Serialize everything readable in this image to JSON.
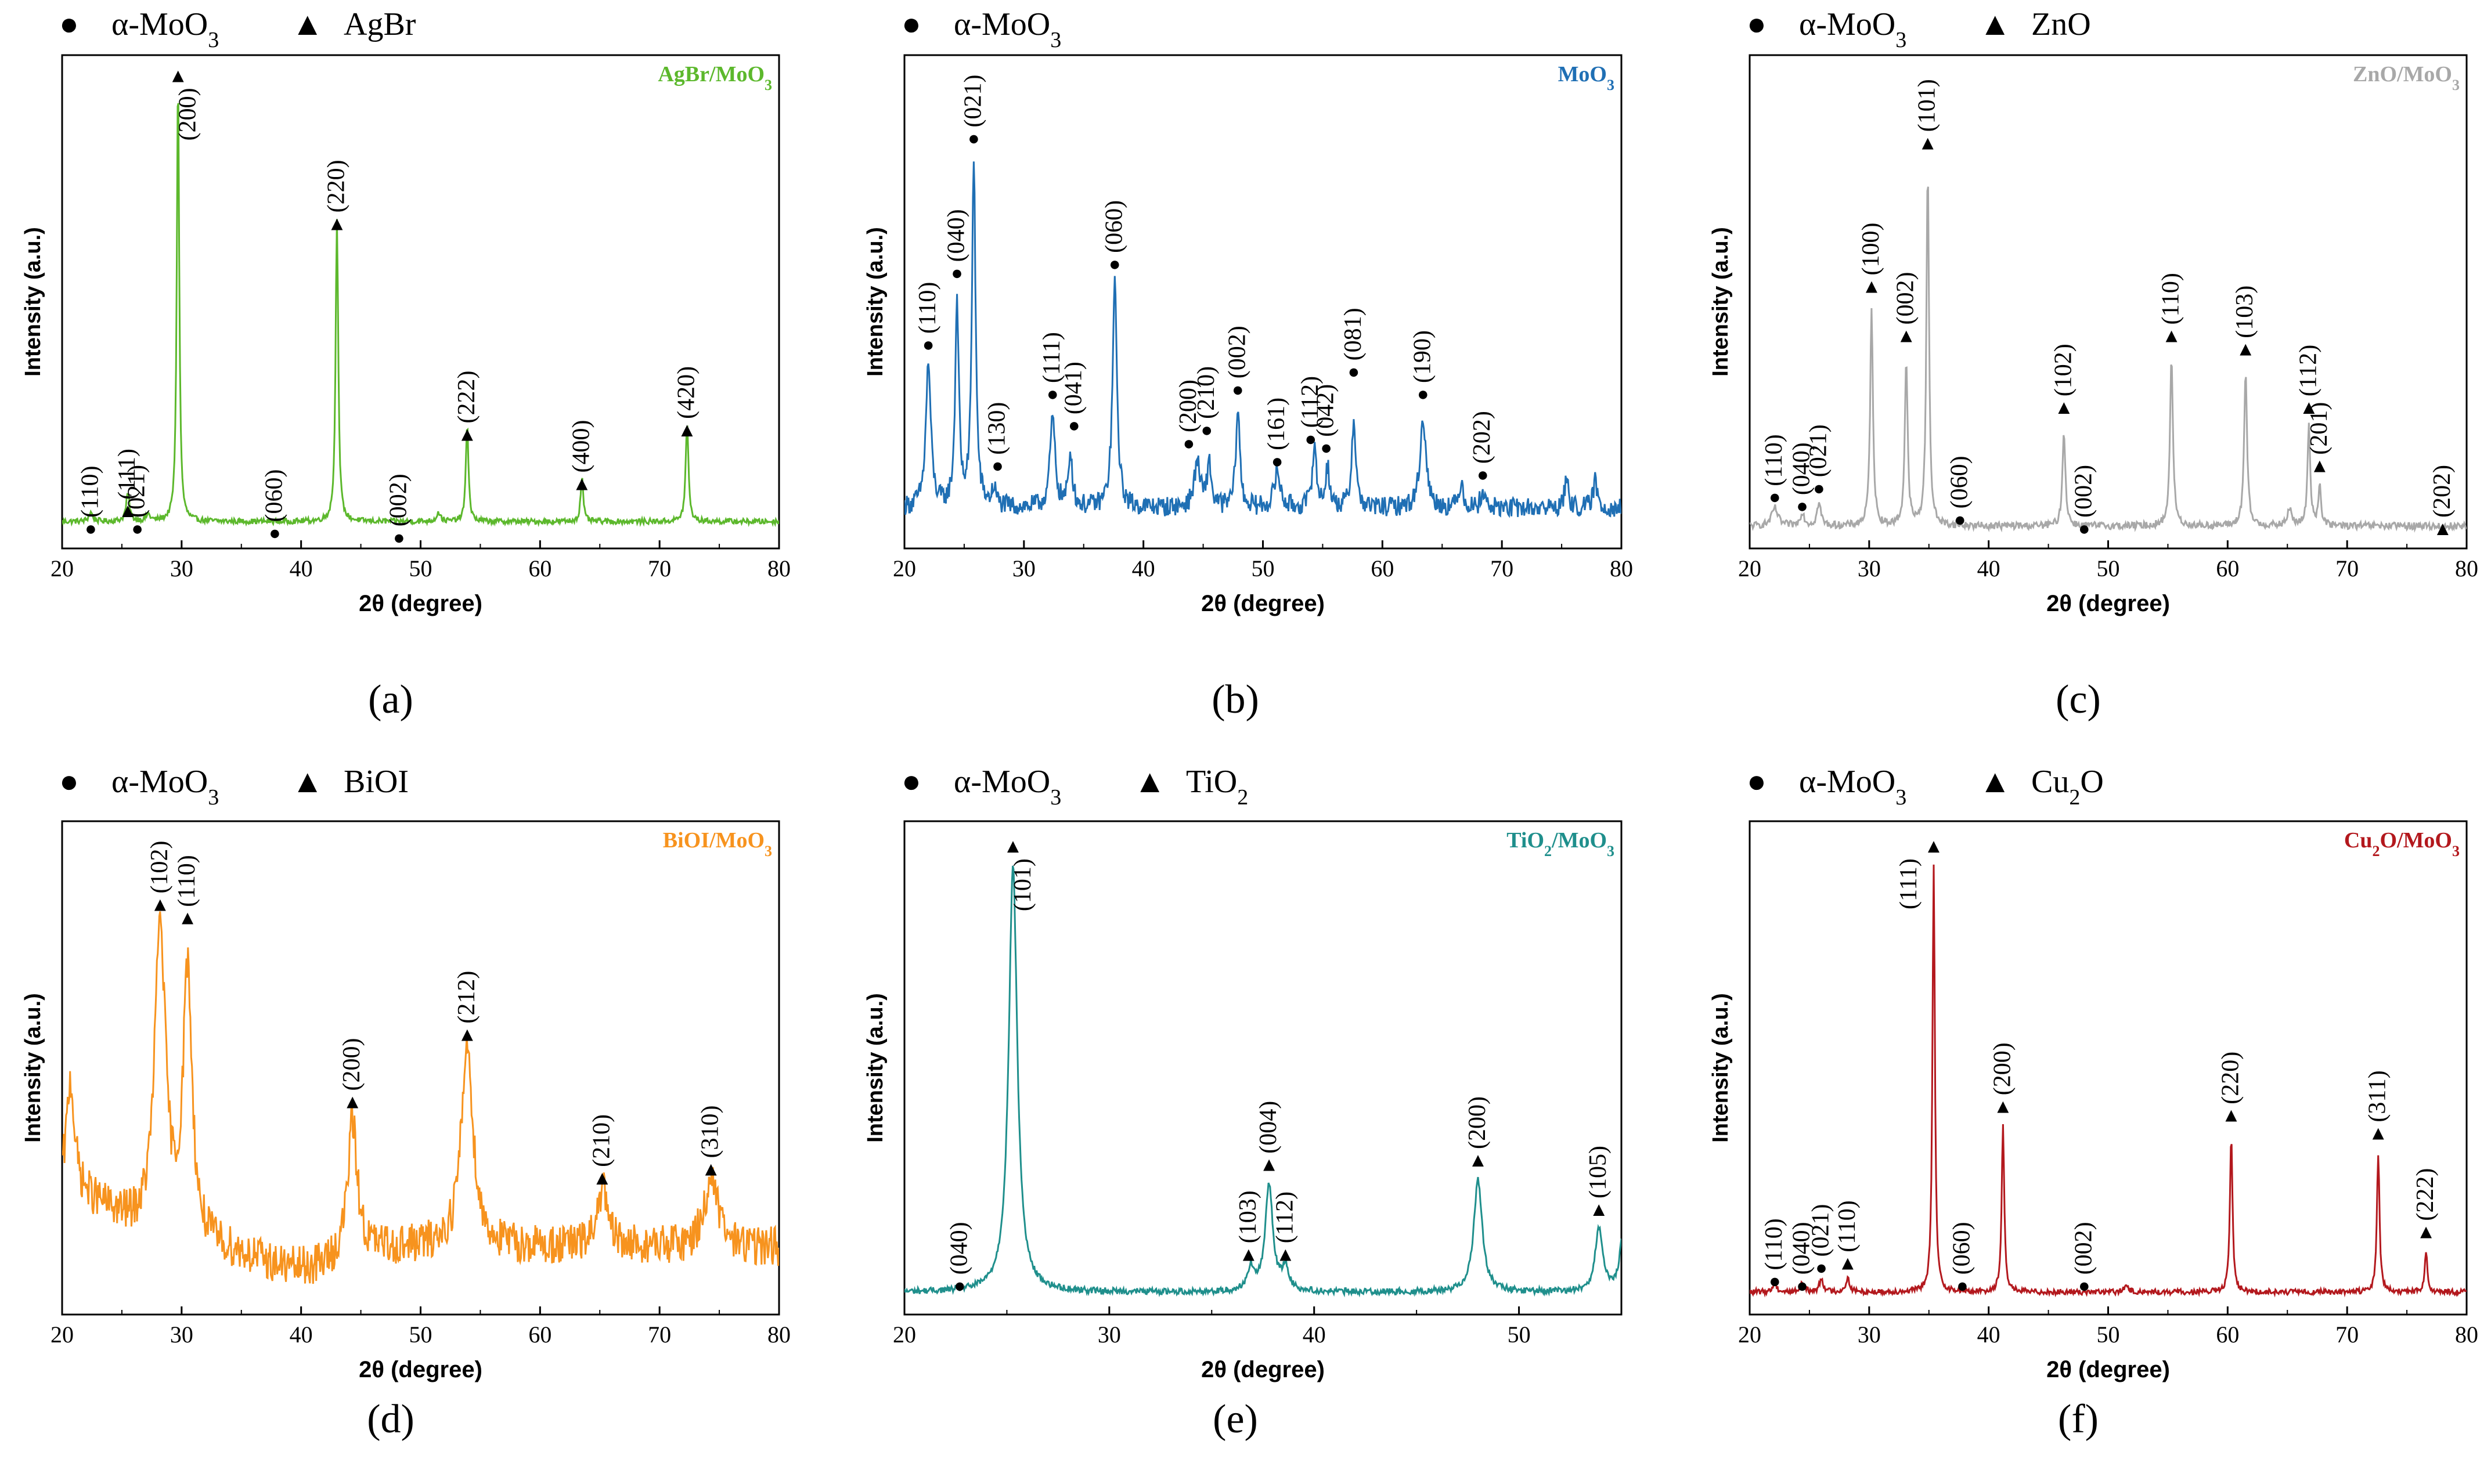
{
  "symbols": {
    "circle": "●",
    "triangle": "▲"
  },
  "chart_data": [
    {
      "type": "line",
      "panel_label": "(a)",
      "sample_title": "AgBr/MoO3",
      "color": "#5cb82c",
      "legend": [
        {
          "symbol": "circle",
          "label": "α-MoO3"
        },
        {
          "symbol": "triangle",
          "label": "AgBr"
        }
      ],
      "xlabel": "2θ (degree)",
      "ylabel": "Intensity (a.u.)",
      "xlim": [
        20,
        80
      ],
      "xticks": [
        20,
        30,
        40,
        50,
        60,
        70,
        80
      ],
      "baseline": 0.06,
      "peaks": [
        {
          "x": 22.4,
          "h": 0.02,
          "w": 0.2
        },
        {
          "x": 25.5,
          "h": 0.06,
          "w": 0.18
        },
        {
          "x": 27.2,
          "h": 0.015,
          "w": 0.2
        },
        {
          "x": 29.7,
          "h": 1.0,
          "w": 0.12
        },
        {
          "x": 43.0,
          "h": 0.68,
          "w": 0.13
        },
        {
          "x": 51.5,
          "h": 0.02,
          "w": 0.2
        },
        {
          "x": 53.9,
          "h": 0.22,
          "w": 0.13
        },
        {
          "x": 63.5,
          "h": 0.1,
          "w": 0.13
        },
        {
          "x": 72.3,
          "h": 0.22,
          "w": 0.14
        }
      ],
      "markers": [
        {
          "x": 22.4,
          "y": 0.03,
          "sym": "circle",
          "label": "(110)"
        },
        {
          "x": 25.5,
          "y": 0.07,
          "sym": "triangle",
          "label": "(111)"
        },
        {
          "x": 26.3,
          "y": 0.03,
          "sym": "circle",
          "label": "(021)"
        },
        {
          "x": 29.7,
          "y": 1.04,
          "sym": "triangle",
          "label": "(200)",
          "side": "right"
        },
        {
          "x": 37.8,
          "y": 0.02,
          "sym": "circle",
          "label": "(060)"
        },
        {
          "x": 43.0,
          "y": 0.71,
          "sym": "triangle",
          "label": "(220)"
        },
        {
          "x": 48.2,
          "y": 0.01,
          "sym": "circle",
          "label": "(002)"
        },
        {
          "x": 53.9,
          "y": 0.24,
          "sym": "triangle",
          "label": "(222)"
        },
        {
          "x": 63.5,
          "y": 0.13,
          "sym": "triangle",
          "label": "(400)"
        },
        {
          "x": 72.3,
          "y": 0.25,
          "sym": "triangle",
          "label": "(420)"
        }
      ]
    },
    {
      "type": "line",
      "panel_label": "(b)",
      "sample_title": "MoO3",
      "color": "#1f6fb4",
      "legend": [
        {
          "symbol": "circle",
          "label": "α-MoO3"
        }
      ],
      "xlabel": "2θ (degree)",
      "ylabel": "Intensity (a.u.)",
      "xlim": [
        20,
        80
      ],
      "xticks": [
        20,
        30,
        40,
        50,
        60,
        70,
        80
      ],
      "baseline": 0.09,
      "peaks": [
        {
          "x": 22.0,
          "h": 0.32,
          "w": 0.25
        },
        {
          "x": 24.4,
          "h": 0.46,
          "w": 0.18
        },
        {
          "x": 25.8,
          "h": 0.78,
          "w": 0.18
        },
        {
          "x": 27.5,
          "h": 0.04,
          "w": 0.2
        },
        {
          "x": 32.4,
          "h": 0.2,
          "w": 0.25
        },
        {
          "x": 33.9,
          "h": 0.12,
          "w": 0.2
        },
        {
          "x": 37.6,
          "h": 0.5,
          "w": 0.22
        },
        {
          "x": 44.5,
          "h": 0.1,
          "w": 0.3
        },
        {
          "x": 45.5,
          "h": 0.1,
          "w": 0.2
        },
        {
          "x": 47.9,
          "h": 0.22,
          "w": 0.2
        },
        {
          "x": 51.2,
          "h": 0.08,
          "w": 0.3
        },
        {
          "x": 54.3,
          "h": 0.14,
          "w": 0.2
        },
        {
          "x": 55.4,
          "h": 0.09,
          "w": 0.2
        },
        {
          "x": 57.6,
          "h": 0.2,
          "w": 0.2
        },
        {
          "x": 63.4,
          "h": 0.2,
          "w": 0.3
        },
        {
          "x": 66.6,
          "h": 0.06,
          "w": 0.2
        },
        {
          "x": 68.4,
          "h": 0.04,
          "w": 0.2
        },
        {
          "x": 75.4,
          "h": 0.06,
          "w": 0.2
        },
        {
          "x": 77.8,
          "h": 0.06,
          "w": 0.2
        }
      ],
      "markers": [
        {
          "x": 22.0,
          "y": 0.44,
          "sym": "circle",
          "label": "(110)"
        },
        {
          "x": 24.4,
          "y": 0.6,
          "sym": "circle",
          "label": "(040)"
        },
        {
          "x": 25.8,
          "y": 0.9,
          "sym": "circle",
          "label": "(021)"
        },
        {
          "x": 27.8,
          "y": 0.17,
          "sym": "circle",
          "label": "(130)"
        },
        {
          "x": 32.4,
          "y": 0.33,
          "sym": "circle",
          "label": "(111)"
        },
        {
          "x": 34.2,
          "y": 0.26,
          "sym": "circle",
          "label": "(041)"
        },
        {
          "x": 37.6,
          "y": 0.62,
          "sym": "circle",
          "label": "(060)"
        },
        {
          "x": 43.8,
          "y": 0.22,
          "sym": "circle",
          "label": "(200)"
        },
        {
          "x": 45.3,
          "y": 0.25,
          "sym": "circle",
          "label": "(210)"
        },
        {
          "x": 47.9,
          "y": 0.34,
          "sym": "circle",
          "label": "(002)"
        },
        {
          "x": 51.2,
          "y": 0.18,
          "sym": "circle",
          "label": "(161)"
        },
        {
          "x": 54.0,
          "y": 0.23,
          "sym": "circle",
          "label": "(112)"
        },
        {
          "x": 55.3,
          "y": 0.21,
          "sym": "circle",
          "label": "(042)"
        },
        {
          "x": 57.6,
          "y": 0.38,
          "sym": "circle",
          "label": "(081)"
        },
        {
          "x": 63.4,
          "y": 0.33,
          "sym": "circle",
          "label": "(190)"
        },
        {
          "x": 68.4,
          "y": 0.15,
          "sym": "circle",
          "label": "(202)"
        }
      ]
    },
    {
      "type": "line",
      "panel_label": "(c)",
      "sample_title": "ZnO/MoO3",
      "color": "#a8a8a8",
      "legend": [
        {
          "symbol": "circle",
          "label": "α-MoO3"
        },
        {
          "symbol": "triangle",
          "label": "ZnO"
        }
      ],
      "xlabel": "2θ (degree)",
      "ylabel": "Intensity (a.u.)",
      "xlim": [
        20,
        80
      ],
      "xticks": [
        20,
        30,
        40,
        50,
        60,
        70,
        80
      ],
      "baseline": 0.05,
      "peaks": [
        {
          "x": 22.1,
          "h": 0.04,
          "w": 0.3
        },
        {
          "x": 24.4,
          "h": 0.03,
          "w": 0.2
        },
        {
          "x": 25.8,
          "h": 0.05,
          "w": 0.2
        },
        {
          "x": 30.2,
          "h": 0.48,
          "w": 0.14
        },
        {
          "x": 33.1,
          "h": 0.37,
          "w": 0.14
        },
        {
          "x": 34.9,
          "h": 0.8,
          "w": 0.13
        },
        {
          "x": 46.3,
          "h": 0.21,
          "w": 0.15
        },
        {
          "x": 55.3,
          "h": 0.37,
          "w": 0.15
        },
        {
          "x": 61.5,
          "h": 0.34,
          "w": 0.15
        },
        {
          "x": 65.2,
          "h": 0.04,
          "w": 0.2
        },
        {
          "x": 66.8,
          "h": 0.22,
          "w": 0.14
        },
        {
          "x": 67.7,
          "h": 0.09,
          "w": 0.14
        }
      ],
      "markers": [
        {
          "x": 22.1,
          "y": 0.1,
          "sym": "circle",
          "label": "(110)"
        },
        {
          "x": 24.4,
          "y": 0.08,
          "sym": "circle",
          "label": "(040)"
        },
        {
          "x": 25.8,
          "y": 0.12,
          "sym": "circle",
          "label": "(021)"
        },
        {
          "x": 30.2,
          "y": 0.57,
          "sym": "triangle",
          "label": "(100)"
        },
        {
          "x": 33.1,
          "y": 0.46,
          "sym": "triangle",
          "label": "(002)"
        },
        {
          "x": 34.9,
          "y": 0.89,
          "sym": "triangle",
          "label": "(101)"
        },
        {
          "x": 37.6,
          "y": 0.05,
          "sym": "circle",
          "label": "(060)"
        },
        {
          "x": 46.3,
          "y": 0.3,
          "sym": "triangle",
          "label": "(102)"
        },
        {
          "x": 48.0,
          "y": 0.03,
          "sym": "circle",
          "label": "(002)"
        },
        {
          "x": 55.3,
          "y": 0.46,
          "sym": "triangle",
          "label": "(110)"
        },
        {
          "x": 61.5,
          "y": 0.43,
          "sym": "triangle",
          "label": "(103)"
        },
        {
          "x": 66.8,
          "y": 0.3,
          "sym": "triangle",
          "label": "(112)"
        },
        {
          "x": 67.7,
          "y": 0.17,
          "sym": "triangle",
          "label": "(201)"
        },
        {
          "x": 78.0,
          "y": 0.03,
          "sym": "triangle",
          "label": "(202)"
        }
      ]
    },
    {
      "type": "line",
      "panel_label": "(d)",
      "sample_title": "BiOI/MoO3",
      "color": "#f7931e",
      "legend": [
        {
          "symbol": "circle",
          "label": "α-MoO3"
        },
        {
          "symbol": "triangle",
          "label": "BiOI"
        }
      ],
      "xlabel": "2θ (degree)",
      "ylabel": "Intensity (a.u.)",
      "xlim": [
        20,
        80
      ],
      "xticks": [
        20,
        30,
        40,
        50,
        60,
        70,
        80
      ],
      "baseline": 0.15,
      "peaks": [
        {
          "x": 20.7,
          "h": 0.25,
          "w": 0.4
        },
        {
          "x": 28.2,
          "h": 0.7,
          "w": 0.55
        },
        {
          "x": 30.5,
          "h": 0.6,
          "w": 0.45
        },
        {
          "x": 44.3,
          "h": 0.3,
          "w": 0.5
        },
        {
          "x": 53.9,
          "h": 0.45,
          "w": 0.6
        },
        {
          "x": 65.2,
          "h": 0.13,
          "w": 0.5
        },
        {
          "x": 74.3,
          "h": 0.15,
          "w": 0.7
        }
      ],
      "markers": [
        {
          "x": 28.2,
          "y": 0.9,
          "sym": "triangle",
          "label": "(102)"
        },
        {
          "x": 30.5,
          "y": 0.87,
          "sym": "triangle",
          "label": "(110)"
        },
        {
          "x": 44.3,
          "y": 0.46,
          "sym": "triangle",
          "label": "(200)"
        },
        {
          "x": 53.9,
          "y": 0.61,
          "sym": "triangle",
          "label": "(212)"
        },
        {
          "x": 65.2,
          "y": 0.29,
          "sym": "triangle",
          "label": "(210)"
        },
        {
          "x": 74.3,
          "y": 0.31,
          "sym": "triangle",
          "label": "(310)"
        }
      ]
    },
    {
      "type": "line",
      "panel_label": "(e)",
      "sample_title": "TiO2/MoO3",
      "color": "#1f8f8c",
      "legend": [
        {
          "symbol": "circle",
          "label": "α-MoO3"
        },
        {
          "symbol": "triangle",
          "label": "TiO2"
        }
      ],
      "xlabel": "2θ (degree)",
      "ylabel": "Intensity (a.u.)",
      "xlim": [
        20,
        55
      ],
      "xticks": [
        20,
        30,
        40,
        50
      ],
      "baseline": 0.05,
      "peaks": [
        {
          "x": 25.3,
          "h": 0.95,
          "w": 0.25
        },
        {
          "x": 36.9,
          "h": 0.05,
          "w": 0.2
        },
        {
          "x": 37.8,
          "h": 0.24,
          "w": 0.22
        },
        {
          "x": 38.6,
          "h": 0.05,
          "w": 0.2
        },
        {
          "x": 48.0,
          "h": 0.25,
          "w": 0.25
        },
        {
          "x": 53.9,
          "h": 0.14,
          "w": 0.22
        },
        {
          "x": 55.1,
          "h": 0.14,
          "w": 0.2
        }
      ],
      "markers": [
        {
          "x": 22.7,
          "y": 0.05,
          "sym": "circle",
          "label": "(040)"
        },
        {
          "x": 25.3,
          "y": 1.03,
          "sym": "triangle",
          "label": "(101)",
          "side": "right"
        },
        {
          "x": 36.8,
          "y": 0.12,
          "sym": "triangle",
          "label": "(103)"
        },
        {
          "x": 37.8,
          "y": 0.32,
          "sym": "triangle",
          "label": "(004)"
        },
        {
          "x": 38.6,
          "y": 0.12,
          "sym": "triangle",
          "label": "(112)"
        },
        {
          "x": 48.0,
          "y": 0.33,
          "sym": "triangle",
          "label": "(200)"
        },
        {
          "x": 53.9,
          "y": 0.22,
          "sym": "triangle",
          "label": "(105)"
        }
      ]
    },
    {
      "type": "line",
      "panel_label": "(f)",
      "sample_title": "Cu2O/MoO3",
      "color": "#b3181d",
      "legend": [
        {
          "symbol": "circle",
          "label": "α-MoO3"
        },
        {
          "symbol": "triangle",
          "label": "Cu2O"
        }
      ],
      "xlabel": "2θ (degree)",
      "ylabel": "Intensity (a.u.)",
      "xlim": [
        20,
        80
      ],
      "xticks": [
        20,
        30,
        40,
        50,
        60,
        70,
        80
      ],
      "baseline": 0.05,
      "peaks": [
        {
          "x": 22.1,
          "h": 0.02,
          "w": 0.2
        },
        {
          "x": 24.4,
          "h": 0.02,
          "w": 0.2
        },
        {
          "x": 26.0,
          "h": 0.03,
          "w": 0.2
        },
        {
          "x": 28.2,
          "h": 0.03,
          "w": 0.2
        },
        {
          "x": 35.4,
          "h": 0.95,
          "w": 0.12
        },
        {
          "x": 41.2,
          "h": 0.37,
          "w": 0.13
        },
        {
          "x": 51.5,
          "h": 0.015,
          "w": 0.2
        },
        {
          "x": 60.3,
          "h": 0.35,
          "w": 0.13
        },
        {
          "x": 72.6,
          "h": 0.31,
          "w": 0.13
        },
        {
          "x": 76.6,
          "h": 0.09,
          "w": 0.13
        }
      ],
      "markers": [
        {
          "x": 22.1,
          "y": 0.06,
          "sym": "circle",
          "label": "(110)"
        },
        {
          "x": 24.4,
          "y": 0.05,
          "sym": "circle",
          "label": "(040)"
        },
        {
          "x": 26.0,
          "y": 0.09,
          "sym": "circle",
          "label": "(021)"
        },
        {
          "x": 28.2,
          "y": 0.1,
          "sym": "triangle",
          "label": "(110)"
        },
        {
          "x": 35.4,
          "y": 1.03,
          "sym": "triangle",
          "label": "(111)",
          "side": "left"
        },
        {
          "x": 37.8,
          "y": 0.05,
          "sym": "circle",
          "label": "(060)"
        },
        {
          "x": 41.2,
          "y": 0.45,
          "sym": "triangle",
          "label": "(200)"
        },
        {
          "x": 48.0,
          "y": 0.05,
          "sym": "circle",
          "label": "(002)"
        },
        {
          "x": 60.3,
          "y": 0.43,
          "sym": "triangle",
          "label": "(220)"
        },
        {
          "x": 72.6,
          "y": 0.39,
          "sym": "triangle",
          "label": "(311)"
        },
        {
          "x": 76.6,
          "y": 0.17,
          "sym": "triangle",
          "label": "(222)"
        }
      ]
    }
  ]
}
